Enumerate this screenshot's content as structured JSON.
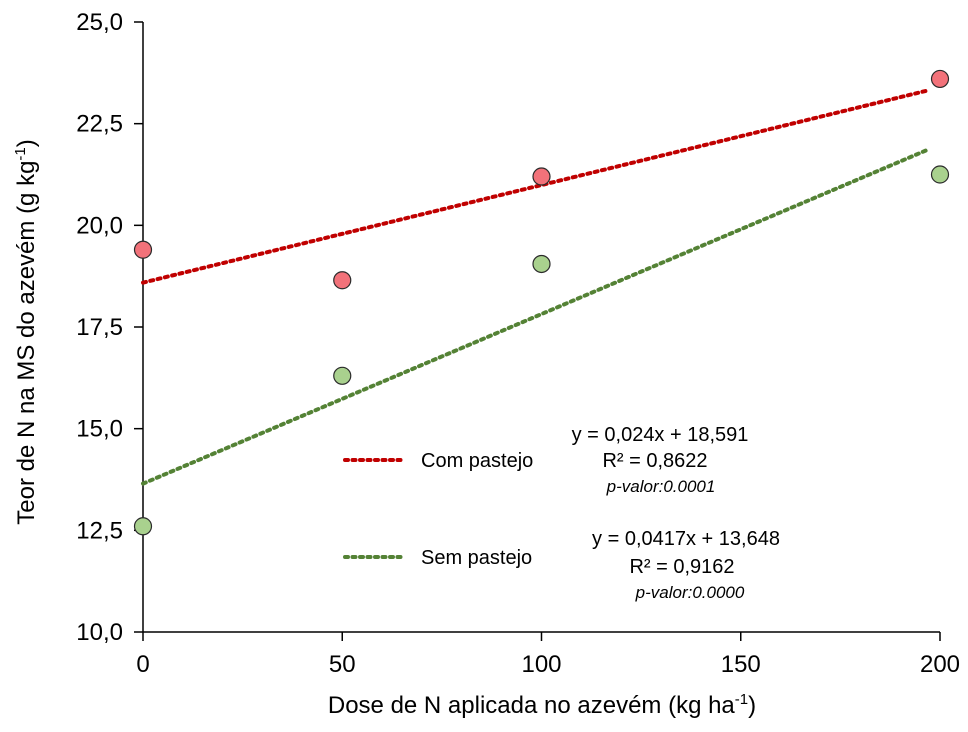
{
  "chart_data": {
    "type": "scatter",
    "xlabel": "Dose de N aplicada no azevém (kg ha",
    "xlabel_sup": "-1",
    "xlabel_end": ")",
    "ylabel": "Teor de N na MS do azevém (g kg",
    "ylabel_sup": "-1",
    "ylabel_end": ")",
    "xlim": [
      0,
      200
    ],
    "ylim": [
      10,
      25
    ],
    "x_ticks": [
      0,
      50,
      100,
      150,
      200
    ],
    "x_tick_labels": [
      "0",
      "50",
      "100",
      "150",
      "200"
    ],
    "y_ticks": [
      10,
      12.5,
      15,
      17.5,
      20,
      22.5,
      25
    ],
    "y_tick_labels": [
      "10,0",
      "12,5",
      "15,0",
      "17,5",
      "20,0",
      "22,5",
      "25,0"
    ],
    "grid": false,
    "legend_position": "center-left",
    "series": [
      {
        "name": "Com pastejo",
        "x": [
          0,
          50,
          100,
          200
        ],
        "y": [
          19.4,
          18.65,
          21.2,
          23.6
        ],
        "marker_color": "#f2727a",
        "trend_color": "#c00000",
        "trendline": {
          "slope": 0.024,
          "intercept": 18.591,
          "x_range": [
            0,
            197
          ]
        },
        "equation": "y = 0,024x + 18,591",
        "r2": "R² = 0,8622",
        "p_value": "p-valor:0.0001"
      },
      {
        "name": "Sem pastejo",
        "x": [
          0,
          50,
          100,
          200
        ],
        "y": [
          12.6,
          16.3,
          19.05,
          21.25
        ],
        "marker_color": "#a9d18e",
        "trend_color": "#548235",
        "trendline": {
          "slope": 0.0417,
          "intercept": 13.648,
          "x_range": [
            0,
            197
          ]
        },
        "equation": "y = 0,0417x + 13,648",
        "r2": "R² = 0,9162",
        "p_value": "p-valor:0.0000"
      }
    ]
  }
}
